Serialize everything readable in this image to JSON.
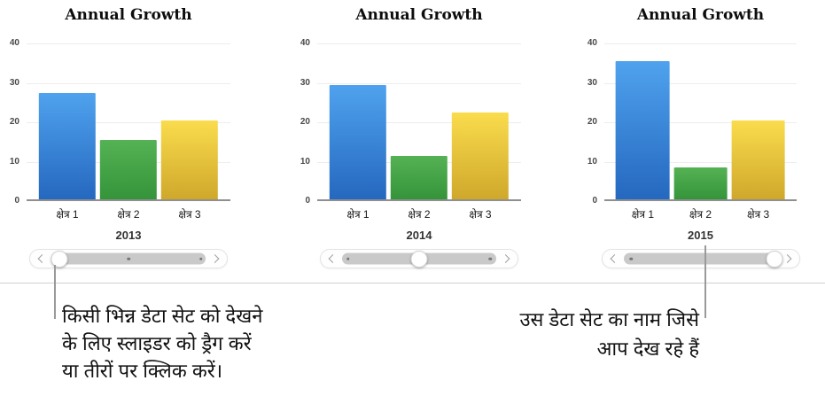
{
  "chart_data": [
    {
      "type": "bar",
      "title": "Annual Growth",
      "categories": [
        "क्षेत्र 1",
        "क्षेत्र 2",
        "क्षेत्र 3"
      ],
      "values": [
        27,
        15,
        20
      ],
      "xlabel": "2013",
      "ylabel": "",
      "ylim": [
        0,
        40
      ],
      "yticks": [
        40,
        30,
        20,
        10,
        0
      ],
      "grid": true,
      "legend": "none"
    },
    {
      "type": "bar",
      "title": "Annual Growth",
      "categories": [
        "क्षेत्र 1",
        "क्षेत्र 2",
        "क्षेत्र 3"
      ],
      "values": [
        29,
        11,
        22
      ],
      "xlabel": "2014",
      "ylabel": "",
      "ylim": [
        0,
        40
      ],
      "yticks": [
        40,
        30,
        20,
        10,
        0
      ],
      "grid": true,
      "legend": "none"
    },
    {
      "type": "bar",
      "title": "Annual Growth",
      "categories": [
        "क्षेत्र 1",
        "क्षेत्र 2",
        "क्षेत्र 3"
      ],
      "values": [
        35,
        8,
        20
      ],
      "xlabel": "2015",
      "ylabel": "",
      "ylim": [
        0,
        40
      ],
      "yticks": [
        40,
        30,
        20,
        10,
        0
      ],
      "grid": true,
      "legend": "none"
    }
  ],
  "bar_colors": [
    {
      "name": "blue",
      "top": "#4FA2EE",
      "bottom": "#2568BF"
    },
    {
      "name": "green",
      "top": "#55B254",
      "bottom": "#35943A"
    },
    {
      "name": "yellow",
      "top": "#FADC4D",
      "bottom": "#CFA82B"
    }
  ],
  "sliders": [
    {
      "thumb_pct": 5,
      "dots_pct": [
        50,
        97
      ]
    },
    {
      "thumb_pct": 50,
      "dots_pct": [
        4,
        96
      ]
    },
    {
      "thumb_pct": 98,
      "dots_pct": [
        5
      ]
    }
  ],
  "icons": {
    "slider_left": "chevron-left",
    "slider_right": "chevron-right"
  },
  "callouts": {
    "left": {
      "lines": [
        "किसी भिन्न डेटा सेट को देखने",
        "के लिए स्लाइडर को ड्रैग करें",
        "या तीरों पर क्लिक करें।"
      ]
    },
    "right": {
      "lines": [
        "उस डेटा सेट का नाम जिसे",
        "आप देख रहे हैं"
      ]
    }
  },
  "colors": {
    "background": "#ffffff",
    "axis": "#8f8f8f",
    "gridline": "#ededed",
    "tick_text": "#4a4a4a",
    "slider_track": "#c9c9c9",
    "connector": "#9a9a9a",
    "divider": "#cfcfcf"
  }
}
